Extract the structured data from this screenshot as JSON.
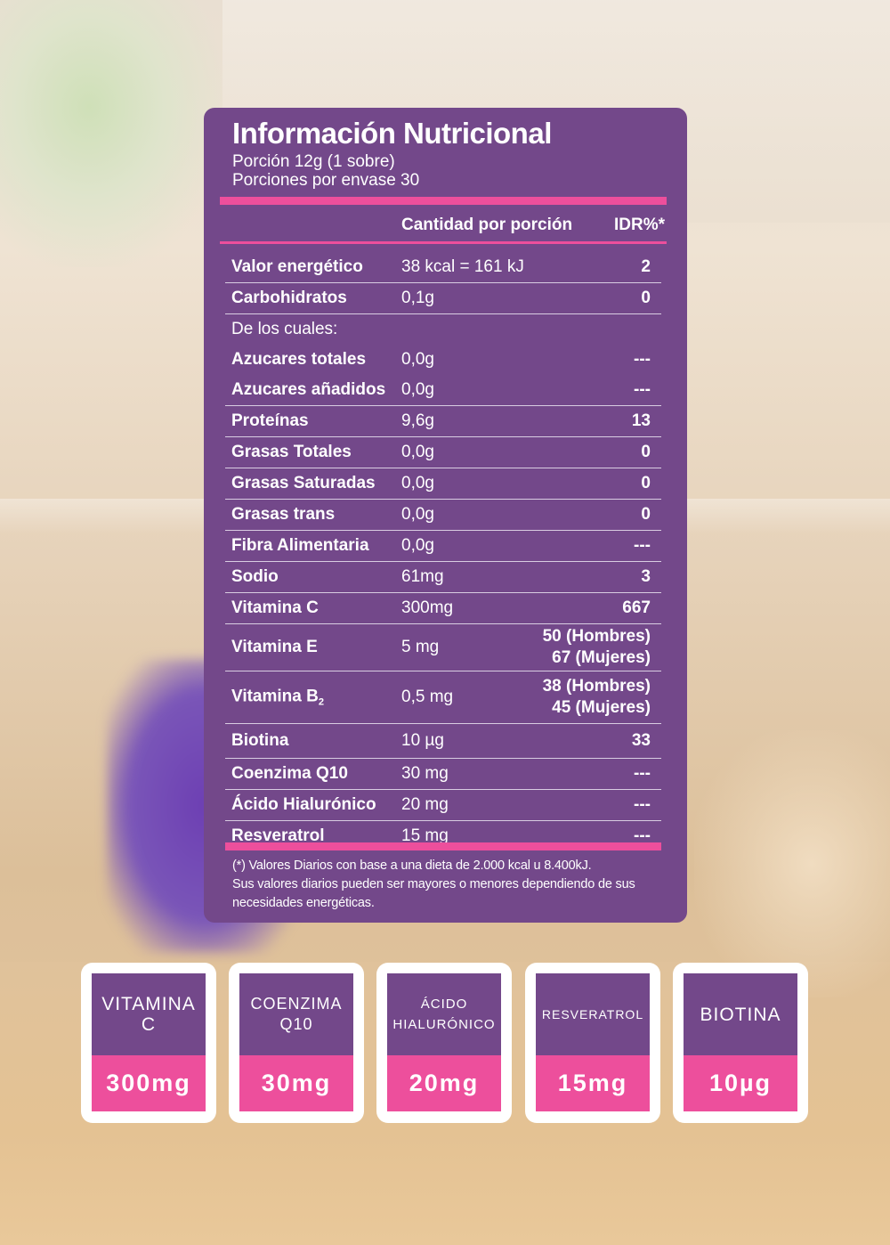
{
  "panel": {
    "title": "Información Nutricional",
    "serving": "Porción 12g (1 sobre)",
    "servings_per_container": "Porciones por envase 30",
    "col_quantity": "Cantidad por porción",
    "col_idr": "IDR%*",
    "rows": [
      {
        "name": "Valor energético",
        "qty": "38 kcal = 161 kJ",
        "idr": "2"
      },
      {
        "name": "Carbohidratos",
        "qty": "0,1g",
        "idr": "0"
      },
      {
        "name": "De los cuales:",
        "qty": "",
        "idr": ""
      },
      {
        "name": "Azucares totales",
        "qty": "0,0g",
        "idr": "---"
      },
      {
        "name": "Azucares añadidos",
        "qty": "0,0g",
        "idr": "---"
      },
      {
        "name": "Proteínas",
        "qty": "9,6g",
        "idr": "13"
      },
      {
        "name": "Grasas Totales",
        "qty": "0,0g",
        "idr": "0"
      },
      {
        "name": "Grasas Saturadas",
        "qty": "0,0g",
        "idr": "0"
      },
      {
        "name": "Grasas trans",
        "qty": "0,0g",
        "idr": "0"
      },
      {
        "name": "Fibra Alimentaria",
        "qty": "0,0g",
        "idr": "---"
      },
      {
        "name": "Sodio",
        "qty": "61mg",
        "idr": "3"
      },
      {
        "name": "Vitamina C",
        "qty": "300mg",
        "idr": "667"
      },
      {
        "name": "Vitamina E",
        "qty": "5 mg",
        "idr_line1": "50 (Hombres)",
        "idr_line2": "67 (Mujeres)"
      },
      {
        "name": "Vitamina B",
        "name_sub": "2",
        "qty": "0,5 mg",
        "idr_line1": "38 (Hombres)",
        "idr_line2": "45 (Mujeres)"
      },
      {
        "name": "Biotina",
        "qty": "10 µg",
        "idr": "33"
      },
      {
        "name": "Coenzima Q10",
        "qty": "30 mg",
        "idr": "---"
      },
      {
        "name": "Ácido Hialurónico",
        "qty": "20 mg",
        "idr": "---"
      },
      {
        "name": "Resveratrol",
        "qty": "15 mg",
        "idr": "---"
      }
    ],
    "footnote_1": "(*) Valores Diarios con base a una dieta de 2.000 kcal u 8.400kJ.",
    "footnote_2": "Sus valores diarios pueden ser mayores o menores dependiendo de sus",
    "footnote_3": "necesidades energéticas."
  },
  "cards": [
    {
      "label_1": "VITAMINA",
      "label_2": "C",
      "value": "300mg"
    },
    {
      "label_1": "COENZIMA",
      "label_2": "Q10",
      "value": "30mg"
    },
    {
      "label_1": "ÁCIDO",
      "label_2": "HIALURÓNICO",
      "value": "20mg"
    },
    {
      "label_1": "RESVERATROL",
      "value": "15mg"
    },
    {
      "label_1": "BIOTINA",
      "value": "10µg"
    }
  ],
  "colors": {
    "panel_purple": "#73488a",
    "accent_pink": "#ed4f9c",
    "card_white": "#ffffff"
  }
}
